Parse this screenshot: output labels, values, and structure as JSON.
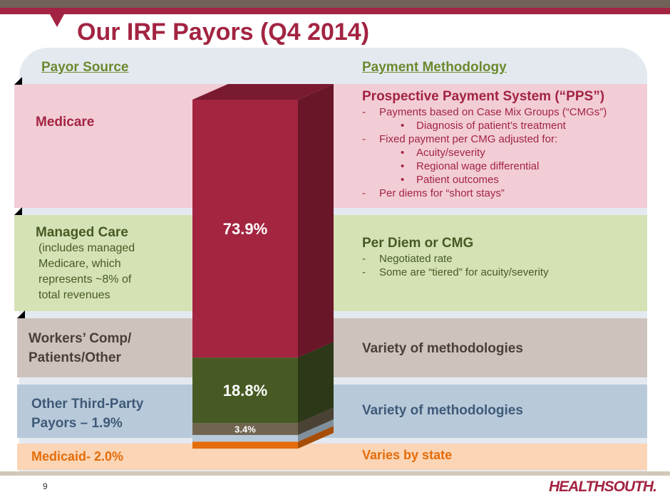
{
  "title": "Our IRF Payors (Q4 2014)",
  "headers": {
    "left": "Payor Source",
    "right": "Payment Methodology"
  },
  "rows": [
    {
      "label": "Medicare",
      "heading": "Prospective Payment System (“PPS”)",
      "lines": [
        {
          "t": "dash",
          "text": "Payments based on Case Mix Groups (“CMGs”)"
        },
        {
          "t": "bullet",
          "text": "Diagnosis of patient’s treatment"
        },
        {
          "t": "dash",
          "text": "Fixed payment per CMG adjusted for:"
        },
        {
          "t": "bullet",
          "text": "Acuity/severity"
        },
        {
          "t": "bullet",
          "text": "Regional wage differential"
        },
        {
          "t": "bullet",
          "text": "Patient outcomes"
        },
        {
          "t": "dash",
          "text": "Per diems for “short stays”"
        }
      ]
    },
    {
      "label": "Managed Care",
      "sublabel": [
        "(includes managed",
        "Medicare, which",
        "represents ~8% of",
        "total revenues"
      ],
      "heading": "Per Diem or CMG",
      "lines": [
        {
          "t": "dash",
          "text": "Negotiated rate"
        },
        {
          "t": "dash",
          "text": "Some are “tiered” for acuity/severity"
        }
      ]
    },
    {
      "label": [
        "Workers’ Comp/",
        "Patients/Other"
      ],
      "heading": "Variety of methodologies"
    },
    {
      "label": [
        "Other Third-Party",
        "Payors – 1.9%"
      ],
      "heading": "Variety of methodologies"
    },
    {
      "label": "Medicaid- 2.0%",
      "heading": "Varies by state"
    }
  ],
  "chart_data": {
    "type": "bar",
    "stacked": true,
    "categories": [
      "Q4 2014"
    ],
    "series": [
      {
        "name": "Medicare",
        "value": 73.9,
        "label": "73.9%",
        "color": "#a32540",
        "side": "#6a1629"
      },
      {
        "name": "Managed Care",
        "value": 18.8,
        "label": "18.8%",
        "color": "#475a23",
        "side": "#2c3817"
      },
      {
        "name": "Workers’ Comp/Patients/Other",
        "value": 3.4,
        "label": "3.4%",
        "color": "#716550",
        "side": "#4a4234"
      },
      {
        "name": "Other Third-Party Payors",
        "value": 1.9,
        "label": "",
        "color": "#b8cada",
        "side": "#7f8f9c"
      },
      {
        "name": "Medicaid",
        "value": 2.0,
        "label": "",
        "color": "#e46c0a",
        "side": "#a64d06"
      }
    ]
  },
  "footer": {
    "page": "9",
    "logo": "HEALTHSOUTH."
  }
}
